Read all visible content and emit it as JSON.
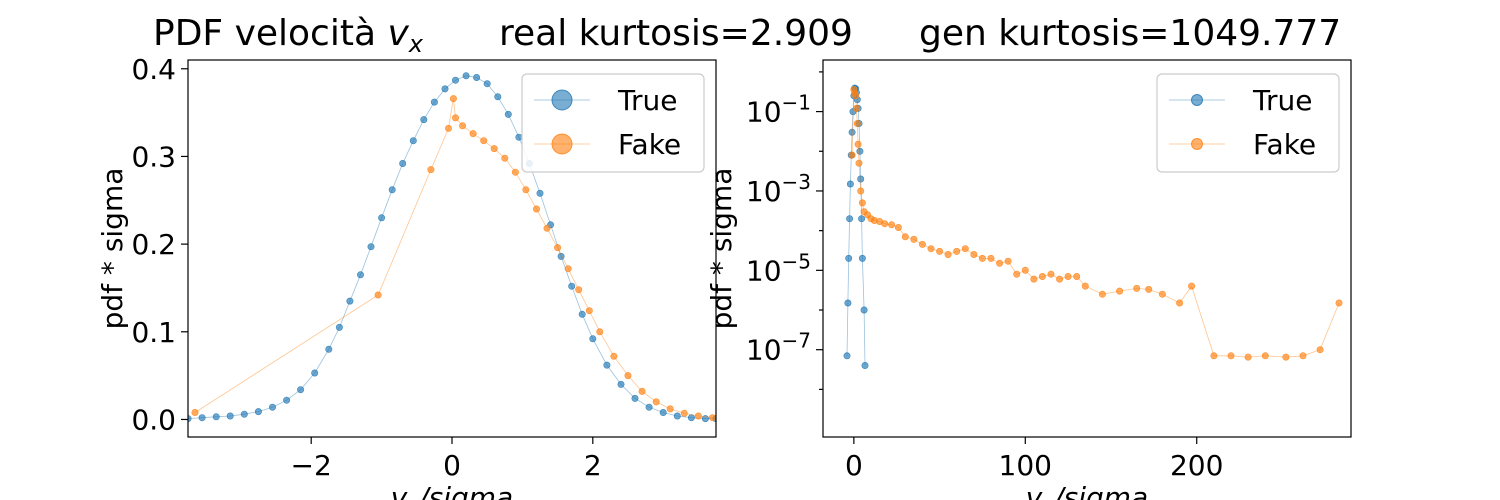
{
  "figure": {
    "title_prefix": "PDF velocità ",
    "title_var": "v",
    "title_sub": "x",
    "title_real": "real kurtosis=2.909",
    "title_gen": "gen kurtosis=1049.777"
  },
  "colors": {
    "true": "#1f77b4",
    "fake": "#ff7f0e"
  },
  "chart_data": [
    {
      "type": "line",
      "id": "linear",
      "ylabel": "pdf * sigma",
      "xlabel_var": "v",
      "xlabel_sub": "x",
      "xlabel_rest": "/sigma",
      "xlim": [
        -3.75,
        3.75
      ],
      "ylim": [
        -0.02,
        0.41
      ],
      "yscale": "linear",
      "xticks": [
        -2,
        0,
        2
      ],
      "xtick_labels": [
        "−2",
        "0",
        "2"
      ],
      "yticks": [
        0.0,
        0.1,
        0.2,
        0.3,
        0.4
      ],
      "ytick_labels": [
        "0.0",
        "0.1",
        "0.2",
        "0.3",
        "0.4"
      ],
      "legend": {
        "placement": "upper right",
        "entries": [
          "True",
          "Fake"
        ]
      },
      "series": [
        {
          "name": "True",
          "x": [
            -3.75,
            -3.55,
            -3.35,
            -3.15,
            -2.95,
            -2.75,
            -2.55,
            -2.35,
            -2.15,
            -1.95,
            -1.75,
            -1.6,
            -1.45,
            -1.3,
            -1.15,
            -1.0,
            -0.85,
            -0.7,
            -0.55,
            -0.4,
            -0.25,
            -0.1,
            0.05,
            0.2,
            0.35,
            0.5,
            0.65,
            0.8,
            0.95,
            1.1,
            1.25,
            1.4,
            1.55,
            1.7,
            1.85,
            2.0,
            2.2,
            2.4,
            2.6,
            2.8,
            3.0,
            3.2,
            3.4,
            3.6,
            3.75
          ],
          "y": [
            0.001,
            0.002,
            0.003,
            0.004,
            0.006,
            0.009,
            0.014,
            0.022,
            0.034,
            0.053,
            0.08,
            0.105,
            0.135,
            0.165,
            0.197,
            0.23,
            0.262,
            0.292,
            0.318,
            0.342,
            0.362,
            0.377,
            0.387,
            0.392,
            0.39,
            0.383,
            0.368,
            0.348,
            0.322,
            0.292,
            0.258,
            0.222,
            0.186,
            0.152,
            0.12,
            0.092,
            0.062,
            0.04,
            0.024,
            0.014,
            0.008,
            0.004,
            0.002,
            0.001,
            0.001
          ]
        },
        {
          "name": "Fake",
          "x": [
            -3.65,
            -1.05,
            -0.3,
            -0.05,
            0.02,
            0.05,
            0.15,
            0.3,
            0.45,
            0.6,
            0.75,
            0.9,
            1.05,
            1.2,
            1.35,
            1.5,
            1.65,
            1.8,
            1.95,
            2.1,
            2.3,
            2.5,
            2.7,
            2.9,
            3.1,
            3.3,
            3.5,
            3.7
          ],
          "y": [
            0.008,
            0.142,
            0.285,
            0.332,
            0.366,
            0.344,
            0.335,
            0.326,
            0.318,
            0.309,
            0.298,
            0.282,
            0.262,
            0.24,
            0.218,
            0.196,
            0.172,
            0.148,
            0.124,
            0.1,
            0.072,
            0.05,
            0.032,
            0.02,
            0.012,
            0.007,
            0.004,
            0.002
          ]
        }
      ]
    },
    {
      "type": "line",
      "id": "log",
      "ylabel": "pdf * sigma",
      "xlabel_var": "v",
      "xlabel_sub": "x",
      "xlabel_rest": "/sigma",
      "xlim": [
        -18,
        290
      ],
      "ylim_log10": [
        -9.2,
        0.3
      ],
      "yscale": "log",
      "xticks": [
        0,
        100,
        200
      ],
      "xtick_labels": [
        "0",
        "100",
        "200"
      ],
      "yticks_exp": [
        -1,
        -3,
        -5,
        -7
      ],
      "ytick_base": "10",
      "ytick_exps": [
        "−1",
        "−3",
        "−5",
        "−7"
      ],
      "legend": {
        "placement": "upper right",
        "entries": [
          "True",
          "Fake"
        ]
      },
      "series": [
        {
          "name": "True",
          "x": [
            -4,
            -3.5,
            -3,
            -2.5,
            -2,
            -1.5,
            -1,
            -0.5,
            0,
            0.5,
            1,
            1.5,
            2,
            2.5,
            3,
            3.5,
            4,
            4.5,
            5,
            6,
            6.5
          ],
          "y": [
            7e-08,
            1.5e-06,
            2e-05,
            0.0002,
            0.0015,
            0.008,
            0.03,
            0.1,
            0.25,
            0.39,
            0.38,
            0.3,
            0.2,
            0.12,
            0.05,
            0.01,
            0.002,
            0.0002,
            2e-05,
            1e-06,
            4e-08
          ]
        },
        {
          "name": "Fake",
          "x": [
            -1,
            0,
            0.5,
            1,
            1.5,
            2,
            2.5,
            3,
            4,
            5,
            6,
            8,
            10,
            12,
            15,
            18,
            22,
            26,
            30,
            35,
            40,
            45,
            50,
            55,
            60,
            65,
            70,
            75,
            80,
            85,
            90,
            95,
            100,
            105,
            110,
            115,
            120,
            125,
            130,
            135,
            145,
            155,
            165,
            172,
            180,
            190,
            197,
            210,
            220,
            230,
            240,
            252,
            262,
            272,
            283
          ],
          "y": [
            0.008,
            0.36,
            0.3,
            0.25,
            0.12,
            0.05,
            0.015,
            0.005,
            0.001,
            0.0005,
            0.0003,
            0.00025,
            0.0002,
            0.00018,
            0.00017,
            0.00015,
            0.00014,
            0.00012,
            7e-05,
            6e-05,
            4.5e-05,
            3.5e-05,
            3e-05,
            2.5e-05,
            3e-05,
            3.5e-05,
            2.5e-05,
            2e-05,
            2e-05,
            1.5e-05,
            1.7e-05,
            8e-06,
            1e-05,
            6e-06,
            7e-06,
            8e-06,
            6e-06,
            7e-06,
            7e-06,
            4e-06,
            2.5e-06,
            3e-06,
            3.5e-06,
            3.3e-06,
            2.5e-06,
            1.5e-06,
            4e-06,
            7e-08,
            7e-08,
            6.5e-08,
            7e-08,
            6.5e-08,
            7e-08,
            1e-07,
            1.5e-06
          ]
        }
      ]
    }
  ]
}
